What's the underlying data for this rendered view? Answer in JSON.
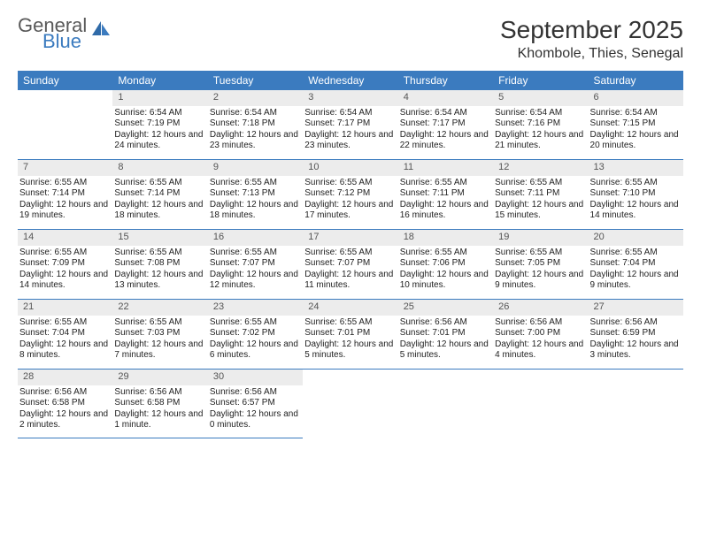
{
  "logo": {
    "general": "General",
    "blue": "Blue"
  },
  "title": "September 2025",
  "location": "Khombole, Thies, Senegal",
  "colors": {
    "header_bg": "#3b7bbf",
    "header_text": "#ffffff",
    "daynum_bg": "#ececec",
    "border": "#3b7bbf",
    "logo_gray": "#5a5a5a",
    "logo_blue": "#3b7bbf"
  },
  "day_headers": [
    "Sunday",
    "Monday",
    "Tuesday",
    "Wednesday",
    "Thursday",
    "Friday",
    "Saturday"
  ],
  "weeks": [
    [
      null,
      {
        "n": "1",
        "sr": "Sunrise: 6:54 AM",
        "ss": "Sunset: 7:19 PM",
        "dl": "Daylight: 12 hours and 24 minutes."
      },
      {
        "n": "2",
        "sr": "Sunrise: 6:54 AM",
        "ss": "Sunset: 7:18 PM",
        "dl": "Daylight: 12 hours and 23 minutes."
      },
      {
        "n": "3",
        "sr": "Sunrise: 6:54 AM",
        "ss": "Sunset: 7:17 PM",
        "dl": "Daylight: 12 hours and 23 minutes."
      },
      {
        "n": "4",
        "sr": "Sunrise: 6:54 AM",
        "ss": "Sunset: 7:17 PM",
        "dl": "Daylight: 12 hours and 22 minutes."
      },
      {
        "n": "5",
        "sr": "Sunrise: 6:54 AM",
        "ss": "Sunset: 7:16 PM",
        "dl": "Daylight: 12 hours and 21 minutes."
      },
      {
        "n": "6",
        "sr": "Sunrise: 6:54 AM",
        "ss": "Sunset: 7:15 PM",
        "dl": "Daylight: 12 hours and 20 minutes."
      }
    ],
    [
      {
        "n": "7",
        "sr": "Sunrise: 6:55 AM",
        "ss": "Sunset: 7:14 PM",
        "dl": "Daylight: 12 hours and 19 minutes."
      },
      {
        "n": "8",
        "sr": "Sunrise: 6:55 AM",
        "ss": "Sunset: 7:14 PM",
        "dl": "Daylight: 12 hours and 18 minutes."
      },
      {
        "n": "9",
        "sr": "Sunrise: 6:55 AM",
        "ss": "Sunset: 7:13 PM",
        "dl": "Daylight: 12 hours and 18 minutes."
      },
      {
        "n": "10",
        "sr": "Sunrise: 6:55 AM",
        "ss": "Sunset: 7:12 PM",
        "dl": "Daylight: 12 hours and 17 minutes."
      },
      {
        "n": "11",
        "sr": "Sunrise: 6:55 AM",
        "ss": "Sunset: 7:11 PM",
        "dl": "Daylight: 12 hours and 16 minutes."
      },
      {
        "n": "12",
        "sr": "Sunrise: 6:55 AM",
        "ss": "Sunset: 7:11 PM",
        "dl": "Daylight: 12 hours and 15 minutes."
      },
      {
        "n": "13",
        "sr": "Sunrise: 6:55 AM",
        "ss": "Sunset: 7:10 PM",
        "dl": "Daylight: 12 hours and 14 minutes."
      }
    ],
    [
      {
        "n": "14",
        "sr": "Sunrise: 6:55 AM",
        "ss": "Sunset: 7:09 PM",
        "dl": "Daylight: 12 hours and 14 minutes."
      },
      {
        "n": "15",
        "sr": "Sunrise: 6:55 AM",
        "ss": "Sunset: 7:08 PM",
        "dl": "Daylight: 12 hours and 13 minutes."
      },
      {
        "n": "16",
        "sr": "Sunrise: 6:55 AM",
        "ss": "Sunset: 7:07 PM",
        "dl": "Daylight: 12 hours and 12 minutes."
      },
      {
        "n": "17",
        "sr": "Sunrise: 6:55 AM",
        "ss": "Sunset: 7:07 PM",
        "dl": "Daylight: 12 hours and 11 minutes."
      },
      {
        "n": "18",
        "sr": "Sunrise: 6:55 AM",
        "ss": "Sunset: 7:06 PM",
        "dl": "Daylight: 12 hours and 10 minutes."
      },
      {
        "n": "19",
        "sr": "Sunrise: 6:55 AM",
        "ss": "Sunset: 7:05 PM",
        "dl": "Daylight: 12 hours and 9 minutes."
      },
      {
        "n": "20",
        "sr": "Sunrise: 6:55 AM",
        "ss": "Sunset: 7:04 PM",
        "dl": "Daylight: 12 hours and 9 minutes."
      }
    ],
    [
      {
        "n": "21",
        "sr": "Sunrise: 6:55 AM",
        "ss": "Sunset: 7:04 PM",
        "dl": "Daylight: 12 hours and 8 minutes."
      },
      {
        "n": "22",
        "sr": "Sunrise: 6:55 AM",
        "ss": "Sunset: 7:03 PM",
        "dl": "Daylight: 12 hours and 7 minutes."
      },
      {
        "n": "23",
        "sr": "Sunrise: 6:55 AM",
        "ss": "Sunset: 7:02 PM",
        "dl": "Daylight: 12 hours and 6 minutes."
      },
      {
        "n": "24",
        "sr": "Sunrise: 6:55 AM",
        "ss": "Sunset: 7:01 PM",
        "dl": "Daylight: 12 hours and 5 minutes."
      },
      {
        "n": "25",
        "sr": "Sunrise: 6:56 AM",
        "ss": "Sunset: 7:01 PM",
        "dl": "Daylight: 12 hours and 5 minutes."
      },
      {
        "n": "26",
        "sr": "Sunrise: 6:56 AM",
        "ss": "Sunset: 7:00 PM",
        "dl": "Daylight: 12 hours and 4 minutes."
      },
      {
        "n": "27",
        "sr": "Sunrise: 6:56 AM",
        "ss": "Sunset: 6:59 PM",
        "dl": "Daylight: 12 hours and 3 minutes."
      }
    ],
    [
      {
        "n": "28",
        "sr": "Sunrise: 6:56 AM",
        "ss": "Sunset: 6:58 PM",
        "dl": "Daylight: 12 hours and 2 minutes."
      },
      {
        "n": "29",
        "sr": "Sunrise: 6:56 AM",
        "ss": "Sunset: 6:58 PM",
        "dl": "Daylight: 12 hours and 1 minute."
      },
      {
        "n": "30",
        "sr": "Sunrise: 6:56 AM",
        "ss": "Sunset: 6:57 PM",
        "dl": "Daylight: 12 hours and 0 minutes."
      },
      null,
      null,
      null,
      null
    ]
  ]
}
